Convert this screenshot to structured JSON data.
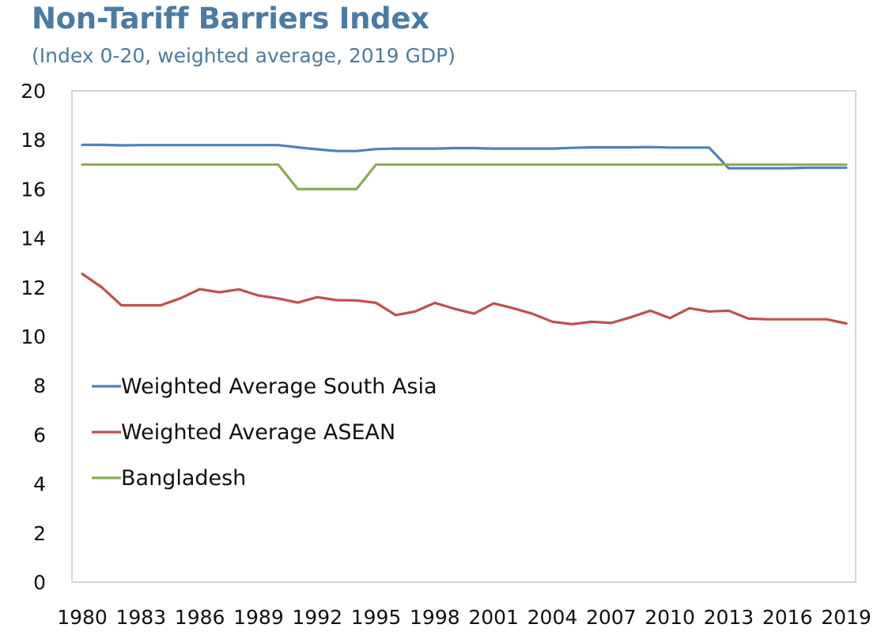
{
  "chart_data": {
    "type": "line",
    "title": "Non-Tariff Barriers Index",
    "subtitle": "(Index 0-20, weighted average, 2019 GDP)",
    "xlabel": "",
    "ylabel": "",
    "ylim": [
      0,
      20
    ],
    "y_ticks": [
      "0",
      "2",
      "4",
      "6",
      "8",
      "10",
      "12",
      "14",
      "16",
      "18",
      "20"
    ],
    "x_tick_labels": [
      "1980",
      "1983",
      "1986",
      "1989",
      "1992",
      "1995",
      "1998",
      "2001",
      "2004",
      "2007",
      "2010",
      "2013",
      "2016",
      "2019"
    ],
    "x": [
      1980,
      1981,
      1982,
      1983,
      1984,
      1985,
      1986,
      1987,
      1988,
      1989,
      1990,
      1991,
      1992,
      1993,
      1994,
      1995,
      1996,
      1997,
      1998,
      1999,
      2000,
      2001,
      2002,
      2003,
      2004,
      2005,
      2006,
      2007,
      2008,
      2009,
      2010,
      2011,
      2012,
      2013,
      2014,
      2015,
      2016,
      2017,
      2018,
      2019
    ],
    "series": [
      {
        "name": "Weighted Average South Asia",
        "color": "#4f81bd",
        "values": [
          17.8,
          17.8,
          17.78,
          17.79,
          17.79,
          17.79,
          17.79,
          17.79,
          17.79,
          17.79,
          17.79,
          17.7,
          17.62,
          17.55,
          17.55,
          17.63,
          17.65,
          17.65,
          17.65,
          17.67,
          17.67,
          17.65,
          17.65,
          17.65,
          17.65,
          17.68,
          17.7,
          17.7,
          17.7,
          17.71,
          17.69,
          17.69,
          17.69,
          16.85,
          16.85,
          16.85,
          16.85,
          16.87,
          16.87,
          16.87
        ]
      },
      {
        "name": "Weighted Average ASEAN",
        "color": "#c0504d",
        "values": [
          12.55,
          12.0,
          11.27,
          11.27,
          11.27,
          11.55,
          11.93,
          11.8,
          11.92,
          11.67,
          11.55,
          11.38,
          11.6,
          11.48,
          11.47,
          11.37,
          10.87,
          11.02,
          11.37,
          11.13,
          10.93,
          11.35,
          11.15,
          10.92,
          10.6,
          10.5,
          10.6,
          10.55,
          10.78,
          11.05,
          10.75,
          11.15,
          11.02,
          11.05,
          10.73,
          10.7,
          10.7,
          10.7,
          10.7,
          10.53
        ]
      },
      {
        "name": "Bangladesh",
        "color": "#8aad55",
        "values": [
          17,
          17,
          17,
          17,
          17,
          17,
          17,
          17,
          17,
          17,
          17,
          16,
          16,
          16,
          16,
          17,
          17,
          17,
          17,
          17,
          17,
          17,
          17,
          17,
          17,
          17,
          17,
          17,
          17,
          17,
          17,
          17,
          17,
          17,
          17,
          17,
          17,
          17,
          17,
          17
        ]
      }
    ],
    "legend": "inside-left"
  }
}
